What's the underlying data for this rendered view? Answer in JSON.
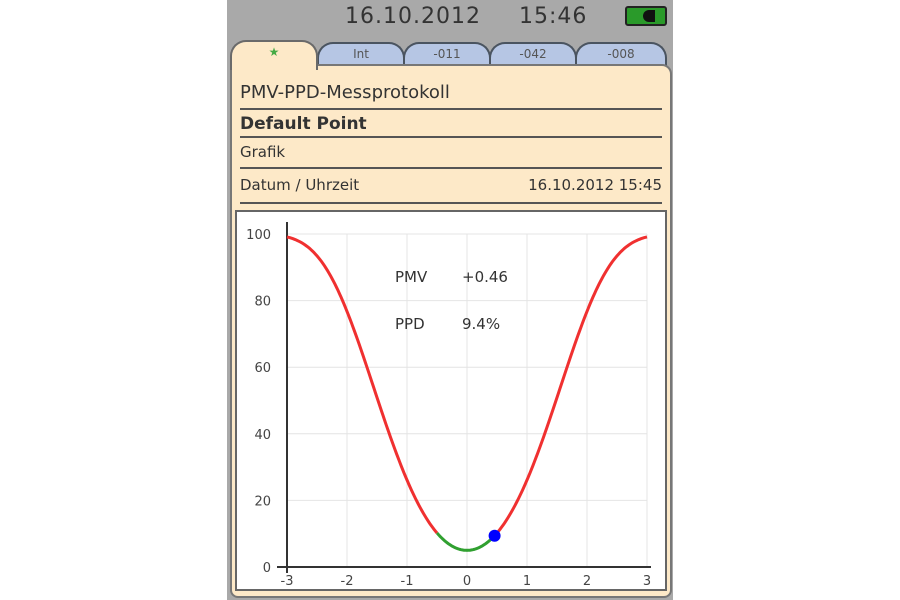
{
  "status": {
    "date": "16.10.2012",
    "time": "15:46",
    "battery_icon": "battery-charging-icon"
  },
  "tabs": [
    {
      "label": "★",
      "icon": "star-icon"
    },
    {
      "label": "Int"
    },
    {
      "label": "-011"
    },
    {
      "label": "-042"
    },
    {
      "label": "-008"
    }
  ],
  "panel": {
    "title": "PMV-PPD-Messprotokoll",
    "point": "Default Point",
    "section": "Grafik",
    "datetime_label": "Datum / Uhrzeit",
    "datetime_value": "16.10.2012 15:45"
  },
  "readout": {
    "pmv_label": "PMV",
    "pmv_value": "+0.46",
    "ppd_label": "PPD",
    "ppd_value": "9.4%"
  },
  "chart_data": {
    "type": "line",
    "xlim": [
      -3,
      3
    ],
    "ylim": [
      0,
      100
    ],
    "xticks": [
      "-3",
      "-2",
      "-1",
      "0",
      "1",
      "2",
      "3"
    ],
    "yticks": [
      "0",
      "20",
      "40",
      "60",
      "80",
      "100"
    ],
    "grid": true,
    "curve": "PPD = 100 - 95*exp(-0.03353*PMV^4 - 0.2179*PMV^2)",
    "comfort_range": [
      -0.5,
      0.5
    ],
    "colors": {
      "curve": "#f03030",
      "comfort": "#30a030",
      "point": "#0000ff"
    },
    "point": {
      "x": 0.46,
      "y": 9.4
    }
  }
}
